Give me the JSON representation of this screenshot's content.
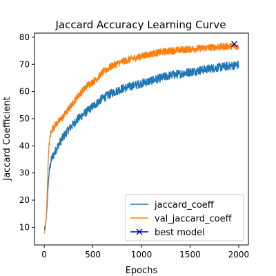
{
  "chart_data": {
    "type": "line",
    "title": "Jaccard Accuracy Learning Curve",
    "xlabel": "Epochs",
    "ylabel": "Jaccard Coefficient",
    "xlim": [
      -100,
      2100
    ],
    "ylim": [
      3.5,
      81.5
    ],
    "xticks": [
      0,
      500,
      1000,
      1500,
      2000
    ],
    "yticks": [
      10,
      20,
      30,
      40,
      50,
      60,
      70,
      80
    ],
    "grid": false,
    "legend_position": "lower-right",
    "series": [
      {
        "name": "jaccard_coeff",
        "color": "#1f77b4",
        "x": [
          0,
          10,
          20,
          30,
          40,
          50,
          60,
          70,
          80,
          100,
          120,
          150,
          200,
          250,
          300,
          350,
          400,
          450,
          500,
          550,
          600,
          700,
          800,
          900,
          1000,
          1100,
          1200,
          1300,
          1400,
          1500,
          1600,
          1700,
          1800,
          1900,
          2000
        ],
        "y": [
          9.0,
          10.5,
          13.0,
          18.0,
          25.0,
          30.0,
          32.5,
          34.5,
          35.5,
          37.0,
          38.5,
          40.5,
          43.5,
          46.0,
          48.0,
          50.0,
          51.5,
          53.0,
          54.5,
          56.0,
          57.5,
          59.5,
          61.0,
          62.0,
          63.0,
          64.0,
          65.0,
          66.0,
          66.5,
          67.2,
          67.8,
          68.4,
          68.9,
          69.4,
          69.8
        ],
        "noise": 1.6
      },
      {
        "name": "val_jaccard_coeff",
        "color": "#ff7f0e",
        "x": [
          0,
          10,
          20,
          30,
          40,
          50,
          60,
          70,
          80,
          100,
          120,
          150,
          200,
          250,
          300,
          350,
          400,
          450,
          500,
          550,
          600,
          700,
          800,
          900,
          1000,
          1100,
          1200,
          1300,
          1400,
          1500,
          1600,
          1700,
          1800,
          1900,
          2000
        ],
        "y": [
          7.5,
          9.0,
          13.0,
          22.0,
          34.0,
          40.0,
          43.0,
          44.8,
          46.0,
          47.0,
          48.0,
          49.0,
          51.0,
          53.5,
          56.0,
          58.5,
          60.5,
          62.5,
          63.5,
          65.0,
          67.0,
          69.5,
          71.0,
          72.0,
          73.0,
          73.8,
          74.5,
          75.0,
          75.3,
          75.6,
          75.9,
          76.2,
          76.4,
          76.7,
          76.6
        ],
        "noise": 1.3
      }
    ],
    "markers": [
      {
        "name": "best model",
        "color": "#0000cc",
        "symbol": "x",
        "x": 1955,
        "y": 77.5
      }
    ]
  }
}
